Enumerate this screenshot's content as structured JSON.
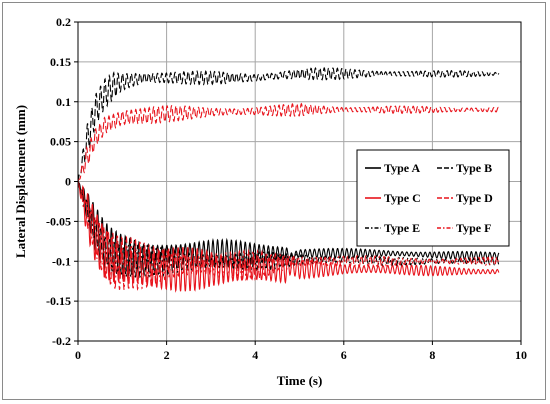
{
  "chart_data": {
    "type": "line",
    "title": "",
    "xlabel": "Time (s)",
    "ylabel": "Lateral Displacement (mm)",
    "xlim": [
      0,
      10
    ],
    "ylim": [
      -0.2,
      0.2
    ],
    "x_ticks": [
      "0",
      "2",
      "4",
      "6",
      "8",
      "10"
    ],
    "y_ticks": [
      "0.2",
      "0.15",
      "0.1",
      "0.05",
      "0",
      "-0.05",
      "-0.1",
      "-0.15",
      "-0.2"
    ],
    "grid": true,
    "legend_position": "center-right",
    "series": [
      {
        "name": "Type A",
        "color": "#000000",
        "dash": "solid",
        "x": [
          0,
          0.2,
          0.4,
          0.6,
          0.8,
          1.0,
          1.5,
          2,
          3,
          4,
          4.7,
          4.8,
          5,
          6,
          7,
          8,
          9,
          9.5
        ],
        "y": [
          0,
          -0.03,
          -0.06,
          -0.08,
          -0.09,
          -0.095,
          -0.095,
          -0.09,
          -0.09,
          -0.09,
          -0.09,
          -0.095,
          -0.09,
          -0.09,
          -0.09,
          -0.092,
          -0.093,
          -0.093
        ],
        "amp": [
          0,
          0.02,
          0.03,
          0.03,
          0.03,
          0.03,
          0.025,
          0.02,
          0.018,
          0.015,
          0.015,
          0.01,
          0.008,
          0.006,
          0.005,
          0.005,
          0.005,
          0.005
        ]
      },
      {
        "name": "Type B",
        "color": "#000000",
        "dash": "long",
        "x": [
          0,
          0.2,
          0.4,
          0.6,
          0.8,
          1.0,
          1.5,
          2,
          3,
          4,
          5,
          6,
          7,
          8,
          9,
          9.5
        ],
        "y": [
          0,
          0.05,
          0.09,
          0.11,
          0.12,
          0.125,
          0.13,
          0.13,
          0.13,
          0.13,
          0.135,
          0.135,
          0.135,
          0.135,
          0.135,
          0.135
        ],
        "amp": [
          0,
          0.02,
          0.02,
          0.02,
          0.02,
          0.015,
          0.012,
          0.01,
          0.008,
          0.007,
          0.008,
          0.007,
          0.005,
          0.004,
          0.004,
          0.003
        ]
      },
      {
        "name": "Type C",
        "color": "#e8141c",
        "dash": "solid",
        "x": [
          0,
          0.2,
          0.4,
          0.6,
          0.8,
          1.0,
          1.5,
          2,
          3,
          4,
          4.7,
          4.8,
          5,
          6,
          7,
          8,
          9,
          9.5
        ],
        "y": [
          0,
          -0.04,
          -0.07,
          -0.09,
          -0.1,
          -0.105,
          -0.11,
          -0.11,
          -0.11,
          -0.11,
          -0.11,
          -0.105,
          -0.11,
          -0.11,
          -0.11,
          -0.112,
          -0.113,
          -0.113
        ],
        "amp": [
          0,
          0.03,
          0.04,
          0.045,
          0.045,
          0.04,
          0.035,
          0.03,
          0.025,
          0.025,
          0.02,
          0.012,
          0.012,
          0.008,
          0.008,
          0.006,
          0.005,
          0.005
        ]
      },
      {
        "name": "Type D",
        "color": "#e8141c",
        "dash": "long",
        "x": [
          0,
          0.2,
          0.4,
          0.6,
          0.8,
          1.0,
          1.5,
          2,
          3,
          4,
          5,
          6,
          7,
          8,
          9,
          9.5
        ],
        "y": [
          0,
          0.03,
          0.055,
          0.07,
          0.075,
          0.08,
          0.082,
          0.085,
          0.087,
          0.088,
          0.09,
          0.09,
          0.09,
          0.09,
          0.09,
          0.09
        ],
        "amp": [
          0,
          0.02,
          0.02,
          0.02,
          0.018,
          0.015,
          0.012,
          0.01,
          0.008,
          0.006,
          0.008,
          0.005,
          0.005,
          0.004,
          0.004,
          0.004
        ]
      },
      {
        "name": "Type E",
        "color": "#000000",
        "dash": "dashdot",
        "x": [
          0,
          0.2,
          0.4,
          0.6,
          0.8,
          1.0,
          1.5,
          2,
          3,
          4,
          5,
          6,
          7,
          8,
          9,
          9.5
        ],
        "y": [
          0,
          -0.035,
          -0.065,
          -0.085,
          -0.095,
          -0.1,
          -0.1,
          -0.1,
          -0.1,
          -0.1,
          -0.098,
          -0.098,
          -0.1,
          -0.1,
          -0.1,
          -0.1
        ],
        "amp": [
          0,
          0.02,
          0.03,
          0.03,
          0.03,
          0.025,
          0.02,
          0.018,
          0.015,
          0.012,
          0.008,
          0.006,
          0.005,
          0.005,
          0.005,
          0.005
        ]
      },
      {
        "name": "Type F",
        "color": "#e8141c",
        "dash": "dashdot",
        "x": [
          0,
          0.2,
          0.4,
          0.6,
          0.8,
          1.0,
          1.5,
          2,
          3,
          4,
          5,
          6,
          7,
          8,
          9,
          9.5
        ],
        "y": [
          0,
          -0.04,
          -0.07,
          -0.09,
          -0.1,
          -0.102,
          -0.105,
          -0.105,
          -0.105,
          -0.105,
          -0.1,
          -0.1,
          -0.1,
          -0.1,
          -0.1,
          -0.1
        ],
        "amp": [
          0,
          0.025,
          0.035,
          0.04,
          0.04,
          0.035,
          0.03,
          0.025,
          0.02,
          0.018,
          0.01,
          0.008,
          0.006,
          0.005,
          0.005,
          0.005
        ]
      }
    ]
  }
}
